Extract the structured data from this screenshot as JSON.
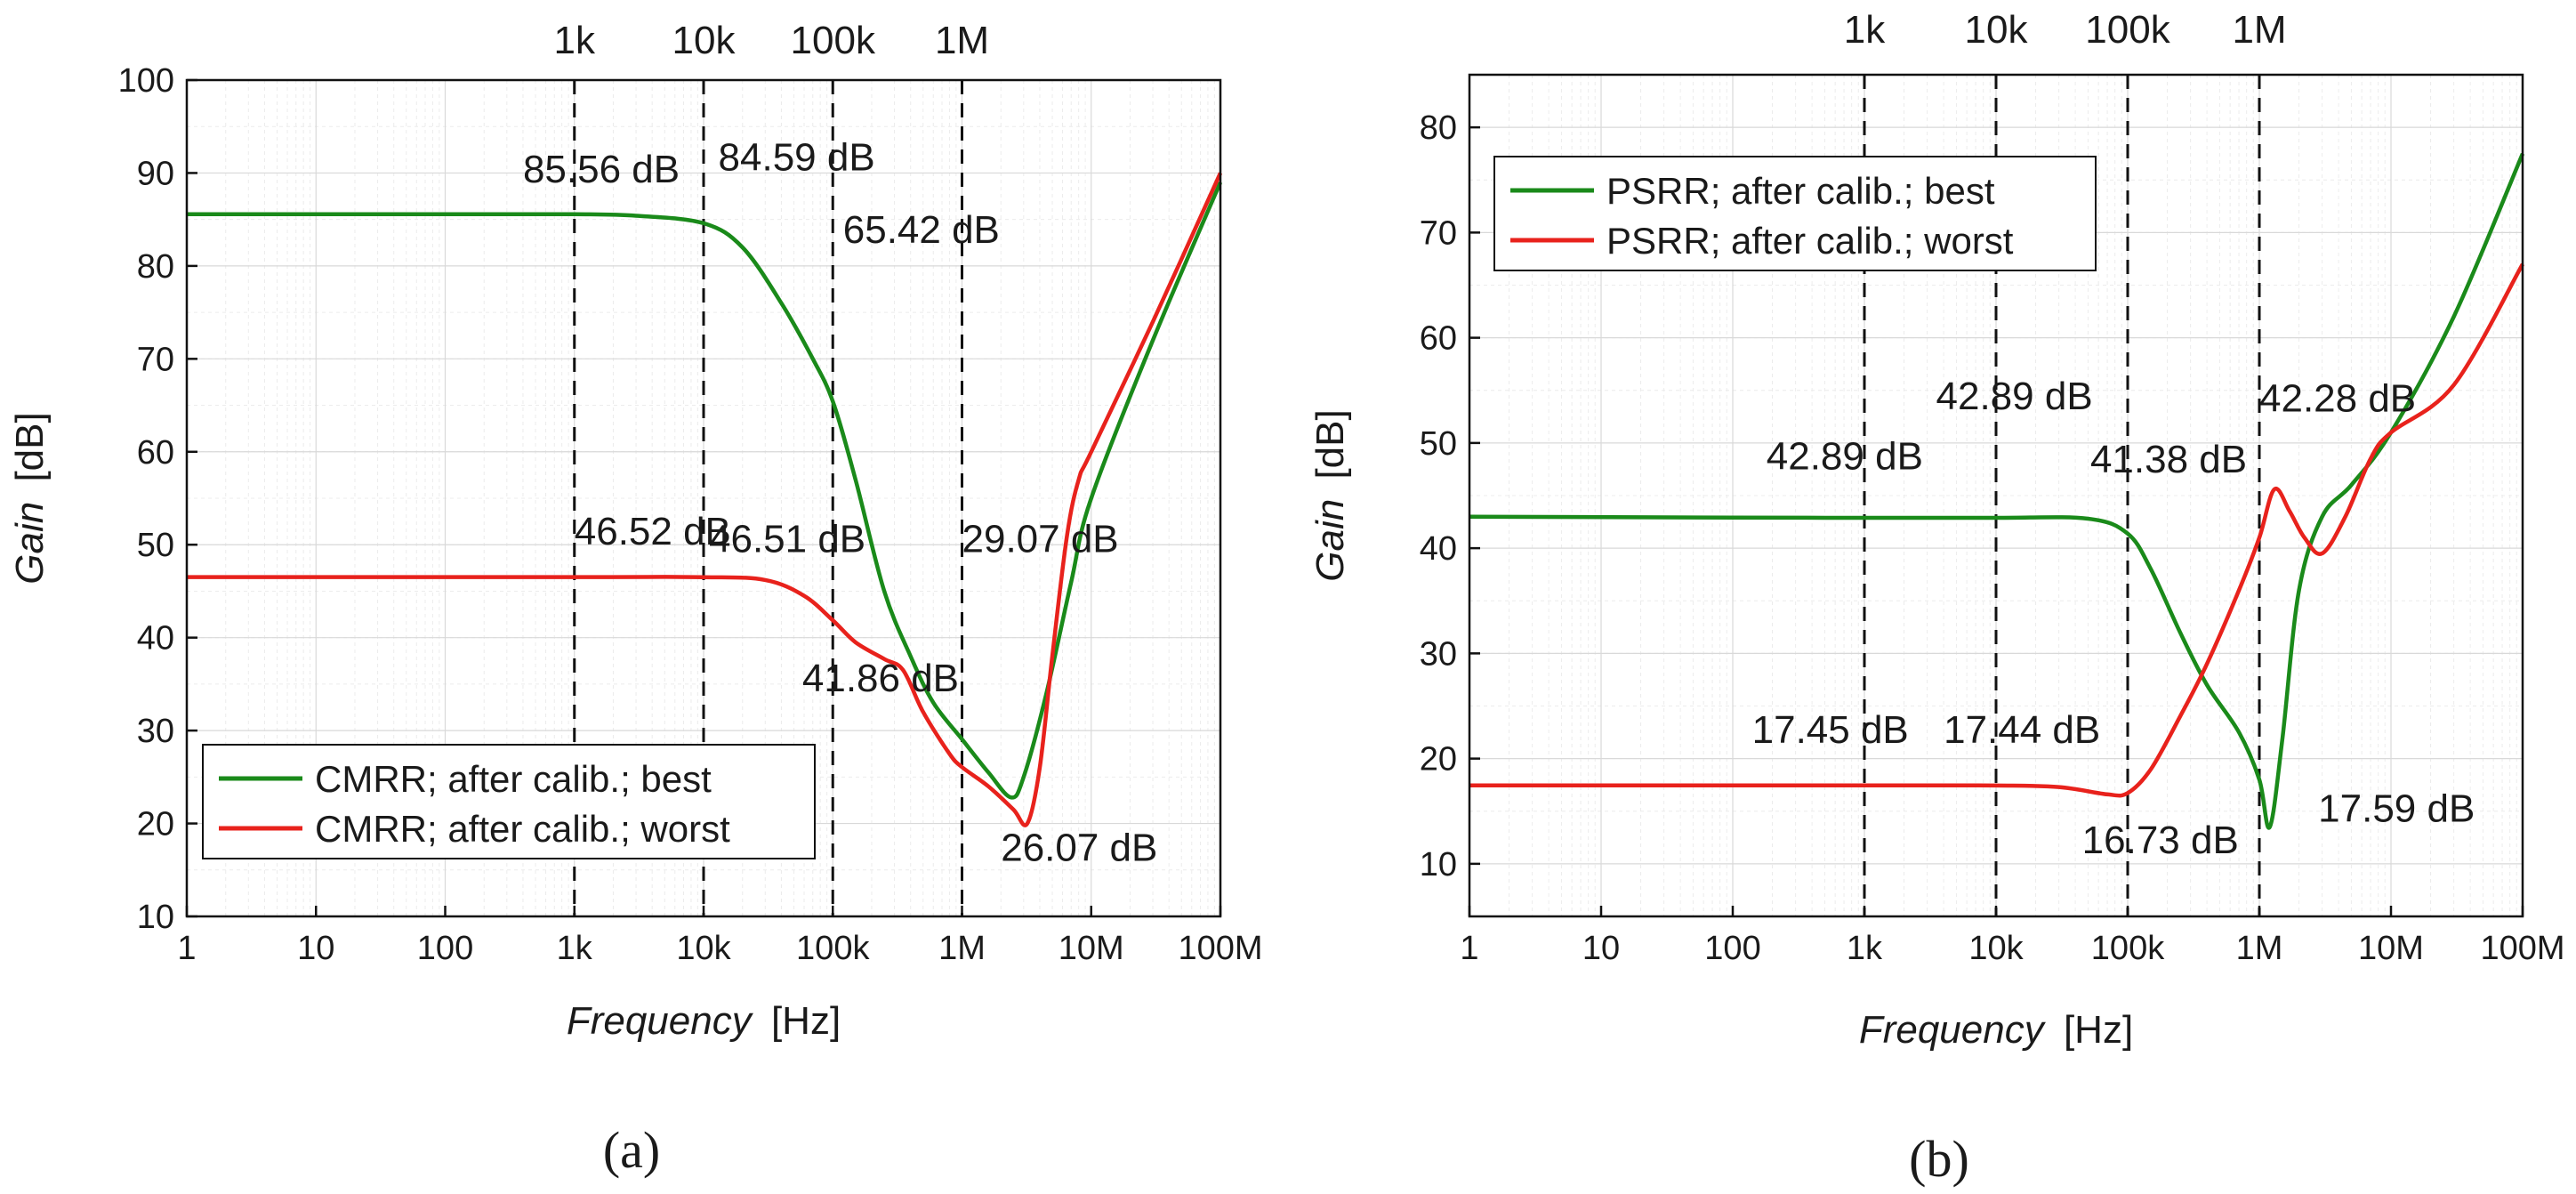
{
  "panels": {
    "a": {
      "label": "(a)"
    },
    "b": {
      "label": "(b)"
    }
  },
  "chart_data": [
    {
      "type": "line",
      "id": "a",
      "xlabel_italic": "Frequency",
      "xlabel_unit": "[Hz]",
      "ylabel_italic": "Gain",
      "ylabel_unit": "[dB]",
      "xscale": "log",
      "xlim": [
        1,
        100000000
      ],
      "ylim": [
        10,
        100
      ],
      "xticks": [
        {
          "v": 1,
          "label": "1"
        },
        {
          "v": 10,
          "label": "10"
        },
        {
          "v": 100,
          "label": "100"
        },
        {
          "v": 1000,
          "label": "1k"
        },
        {
          "v": 10000,
          "label": "10k"
        },
        {
          "v": 100000,
          "label": "100k"
        },
        {
          "v": 1000000,
          "label": "1M"
        },
        {
          "v": 10000000,
          "label": "10M"
        },
        {
          "v": 100000000,
          "label": "100M"
        }
      ],
      "yticks": [
        10,
        20,
        30,
        40,
        50,
        60,
        70,
        80,
        90,
        100
      ],
      "top_markers": [
        {
          "v": 1000,
          "label": "1k"
        },
        {
          "v": 10000,
          "label": "10k"
        },
        {
          "v": 100000,
          "label": "100k"
        },
        {
          "v": 1000000,
          "label": "1M"
        }
      ],
      "legend_position": "bottom-left",
      "series": [
        {
          "name": "CMRR; after calib.; best",
          "color": "#1a8a1a",
          "points": [
            [
              1,
              85.56
            ],
            [
              100,
              85.56
            ],
            [
              1000,
              85.56
            ],
            [
              3000,
              85.4
            ],
            [
              10000,
              84.59
            ],
            [
              20000,
              82
            ],
            [
              40000,
              76
            ],
            [
              70000,
              70
            ],
            [
              100000,
              65.42
            ],
            [
              150000,
              57
            ],
            [
              250000,
              45
            ],
            [
              400000,
              38
            ],
            [
              600000,
              33
            ],
            [
              1000000,
              29.07
            ],
            [
              1600000,
              25.5
            ],
            [
              2400000,
              22.8
            ],
            [
              3000000,
              25
            ],
            [
              4500000,
              34
            ],
            [
              7000000,
              46
            ],
            [
              10000000,
              55
            ],
            [
              30000000,
              72
            ],
            [
              100000000,
              89
            ]
          ]
        },
        {
          "name": "CMRR; after calib.; worst",
          "color": "#e8221c",
          "points": [
            [
              1,
              46.52
            ],
            [
              1000,
              46.52
            ],
            [
              10000,
              46.51
            ],
            [
              30000,
              46.2
            ],
            [
              60000,
              44.5
            ],
            [
              100000,
              41.86
            ],
            [
              150000,
              39.5
            ],
            [
              250000,
              37.7
            ],
            [
              350000,
              36.5
            ],
            [
              500000,
              32
            ],
            [
              800000,
              27.5
            ],
            [
              1000000,
              26.07
            ],
            [
              1600000,
              24
            ],
            [
              2500000,
              21.5
            ],
            [
              3200000,
              20
            ],
            [
              4000000,
              26
            ],
            [
              5000000,
              38
            ],
            [
              6500000,
              51
            ],
            [
              8000000,
              57
            ],
            [
              10000000,
              60
            ],
            [
              30000000,
              74
            ],
            [
              100000000,
              90
            ]
          ]
        }
      ],
      "annotations": [
        {
          "text": "85.56 dB",
          "x": 400,
          "y": 89
        },
        {
          "text": "84.59 dB",
          "x": 13000,
          "y": 90.3
        },
        {
          "text": "65.42 dB",
          "x": 120000,
          "y": 82.5
        },
        {
          "text": "46.52 dB",
          "x": 1000,
          "y": 50
        },
        {
          "text": "46.51 dB",
          "x": 11000,
          "y": 49.2
        },
        {
          "text": "29.07 dB",
          "x": 1000000,
          "y": 49.2
        },
        {
          "text": "41.86 dB",
          "x": 58000,
          "y": 34.2
        },
        {
          "text": "26.07 dB",
          "x": 2000000,
          "y": 16
        }
      ]
    },
    {
      "type": "line",
      "id": "b",
      "xlabel_italic": "Frequency",
      "xlabel_unit": "[Hz]",
      "ylabel_italic": "Gain",
      "ylabel_unit": "[dB]",
      "xscale": "log",
      "xlim": [
        1,
        100000000
      ],
      "ylim": [
        5,
        85
      ],
      "xticks": [
        {
          "v": 1,
          "label": "1"
        },
        {
          "v": 10,
          "label": "10"
        },
        {
          "v": 100,
          "label": "100"
        },
        {
          "v": 1000,
          "label": "1k"
        },
        {
          "v": 10000,
          "label": "10k"
        },
        {
          "v": 100000,
          "label": "100k"
        },
        {
          "v": 1000000,
          "label": "1M"
        },
        {
          "v": 10000000,
          "label": "10M"
        },
        {
          "v": 100000000,
          "label": "100M"
        }
      ],
      "yticks": [
        10,
        20,
        30,
        40,
        50,
        60,
        70,
        80
      ],
      "top_markers": [
        {
          "v": 1000,
          "label": "1k"
        },
        {
          "v": 10000,
          "label": "10k"
        },
        {
          "v": 100000,
          "label": "100k"
        },
        {
          "v": 1000000,
          "label": "1M"
        }
      ],
      "legend_position": "top-left",
      "series": [
        {
          "name": "PSRR; after calib.; best",
          "color": "#1a8a1a",
          "points": [
            [
              1,
              43
            ],
            [
              100,
              42.9
            ],
            [
              1000,
              42.89
            ],
            [
              10000,
              42.89
            ],
            [
              50000,
              42.8
            ],
            [
              100000,
              41.38
            ],
            [
              150000,
              38
            ],
            [
              250000,
              32
            ],
            [
              400000,
              27
            ],
            [
              700000,
              22.5
            ],
            [
              1000000,
              18
            ],
            [
              1200000,
              13.5
            ],
            [
              1500000,
              22
            ],
            [
              2000000,
              36
            ],
            [
              3000000,
              43
            ],
            [
              5000000,
              46
            ],
            [
              10000000,
              51
            ],
            [
              30000000,
              62
            ],
            [
              100000000,
              77.5
            ]
          ]
        },
        {
          "name": "PSRR; after calib.; worst",
          "color": "#e8221c",
          "points": [
            [
              1,
              17.45
            ],
            [
              1000,
              17.45
            ],
            [
              10000,
              17.44
            ],
            [
              30000,
              17.3
            ],
            [
              70000,
              16.6
            ],
            [
              100000,
              16.73
            ],
            [
              150000,
              19
            ],
            [
              250000,
              24
            ],
            [
              400000,
              29
            ],
            [
              700000,
              36
            ],
            [
              1000000,
              41
            ],
            [
              1300000,
              45.6
            ],
            [
              1700000,
              43.5
            ],
            [
              2200000,
              41
            ],
            [
              3000000,
              39.5
            ],
            [
              4500000,
              43
            ],
            [
              7000000,
              48.5
            ],
            [
              10000000,
              51
            ],
            [
              30000000,
              55.5
            ],
            [
              100000000,
              67
            ]
          ]
        }
      ],
      "annotations": [
        {
          "text": "42.89 dB",
          "x": 180,
          "y": 47.5
        },
        {
          "text": "42.89 dB",
          "x": 3500,
          "y": 53.2
        },
        {
          "text": "41.38 dB",
          "x": 52000,
          "y": 47.2
        },
        {
          "text": "42.28 dB",
          "x": 1000000,
          "y": 53
        },
        {
          "text": "17.45 dB",
          "x": 140,
          "y": 21.5
        },
        {
          "text": "17.44 dB",
          "x": 4000,
          "y": 21.5
        },
        {
          "text": "16.73 dB",
          "x": 45000,
          "y": 11
        },
        {
          "text": "17.59 dB",
          "x": 2800000,
          "y": 14
        }
      ]
    }
  ]
}
